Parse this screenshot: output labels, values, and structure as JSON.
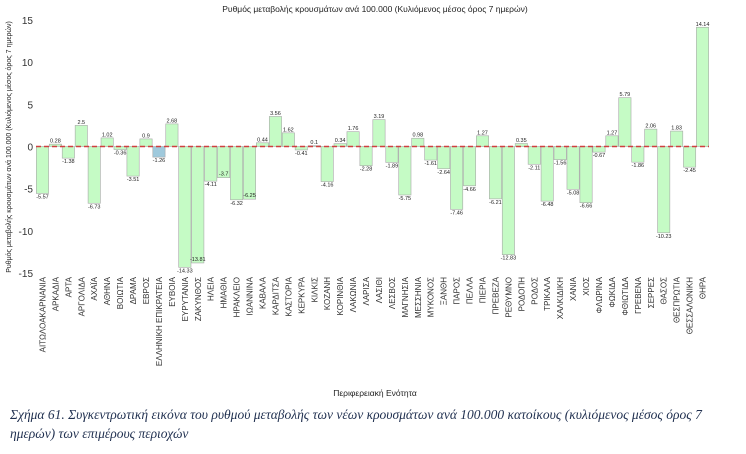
{
  "chart_data": {
    "type": "bar",
    "title": "Ρυθμός μεταβολής κρουσμάτων ανά 100.000 (Κυλιόμενος μέσος όρος 7 ημερών)",
    "xlabel": "Περιφερειακή Ενότητα",
    "ylabel": "Ρυθμός μεταβολής κρουσμάτων ανά 100.000 (Κυλιόμενος μέσος όρος 7 ημερών)",
    "ylim": [
      -15,
      15
    ],
    "yticks": [
      -15,
      -10,
      -5,
      0,
      5,
      10,
      15
    ],
    "reference_line": 0,
    "colors": {
      "bar": "#c5fbc5",
      "highlight": "#9fc9dc",
      "bar_stroke": "#a8a8a8",
      "zero_line": "#d04040"
    },
    "highlight_category": "ΕΛΛΗΝΙΚΗ ΕΠΙΚΡΑΤΕΙΑ",
    "categories": [
      "ΑΙΤΩΛΟΑΚΑΡΝΑΝΙΑ",
      "ΑΡΚΑΔΙΑ",
      "ΑΡΤΑ",
      "ΑΡΓΟΛΙΔΑ",
      "ΑΧΑΪΑ",
      "ΑΘΗΝΑ",
      "ΒΟΙΩΤΙΑ",
      "ΔΡΑΜΑ",
      "ΕΒΡΟΣ",
      "ΕΛΛΗΝΙΚΗ ΕΠΙΚΡΑΤΕΙΑ",
      "ΕΥΒΟΙΑ",
      "ΕΥΡΥΤΑΝΙΑ",
      "ΖΑΚΥΝΘΟΣ",
      "ΗΛΕΙΑ",
      "ΗΜΑΘΙΑ",
      "ΗΡΑΚΛΕΙΟ",
      "ΙΩΑΝΝΙΝΑ",
      "ΚΑΒΑΛΑ",
      "ΚΑΡΔΙΤΣΑ",
      "ΚΑΣΤΟΡΙΑ",
      "ΚΕΡΚΥΡΑ",
      "ΚΙΛΚΙΣ",
      "ΚΟΖΑΝΗ",
      "ΚΟΡΙΝΘΙΑ",
      "ΛΑΚΩΝΙΑ",
      "ΛΑΡΙΣΑ",
      "ΛΑΣΙΘΙ",
      "ΛΕΣΒΟΣ",
      "ΜΑΓΝΗΣΙΑ",
      "ΜΕΣΣΗΝΙΑ",
      "ΜΥΚΟΝΟΣ",
      "ΞΑΝΘΗ",
      "ΠΑΡΟΣ",
      "ΠΕΛΛΑ",
      "ΠΙΕΡΙΑ",
      "ΠΡΕΒΕΖΑ",
      "ΡΕΘΥΜΝΟ",
      "ΡΟΔΟΠΗ",
      "ΡΟΔΟΣ",
      "ΤΡΙΚΑΛΑ",
      "ΧΑΛΚΙΔΙΚΗ",
      "ΧΑΝΙΑ",
      "ΧΙΟΣ",
      "ΦΛΩΡΙΝΑ",
      "ΦΩΚΙΔΑ",
      "ΦΘΙΩΤΙΔΑ",
      "ΓΡΕΒΕΝΑ",
      "ΣΕΡΡΕΣ",
      "ΘΑΣΟΣ",
      "ΘΕΣΠΡΩΤΙΑ",
      "ΘΕΣΣΑΛΟΝΙΚΗ",
      "ΘΗΡΑ"
    ],
    "values": [
      -5.57,
      0.28,
      -1.38,
      2.5,
      -6.73,
      1.02,
      -0.36,
      -3.51,
      0.9,
      -1.26,
      2.68,
      -14.33,
      -13.81,
      -4.11,
      -3.7,
      -6.32,
      -6.25,
      0.44,
      3.56,
      1.62,
      -0.41,
      0.1,
      -4.16,
      0.34,
      1.76,
      -2.28,
      3.19,
      -1.89,
      -5.75,
      0.98,
      -1.61,
      -2.64,
      -7.46,
      -4.66,
      1.27,
      -6.21,
      -12.83,
      0.35,
      -2.11,
      -6.48,
      -1.56,
      -5.08,
      -6.66,
      -0.67,
      1.27,
      5.79,
      -1.86,
      2.06,
      -10.23,
      1.83,
      -2.45,
      14.14
    ]
  },
  "caption": "Σχήμα 61. Συγκεντρωτική εικόνα του ρυθμού μεταβολής των νέων κρουσμάτων ανά 100.000 κατοίκους (κυλιόμενος μέσος όρος 7 ημερών) των επιμέρους περιοχών"
}
